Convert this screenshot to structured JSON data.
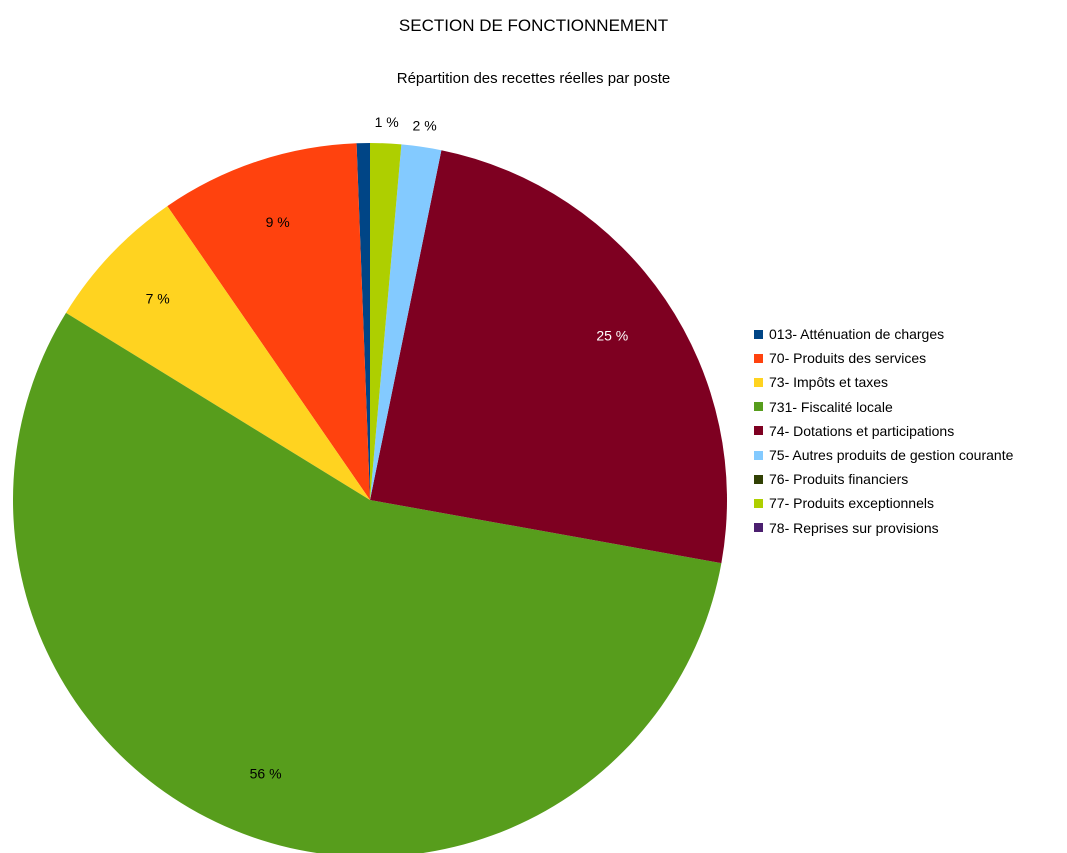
{
  "chart_data": {
    "type": "pie",
    "title": "SECTION DE FONCTIONNEMENT",
    "subtitle": "Répartition des recettes réelles par poste",
    "legend_position": "right",
    "slices": [
      {
        "name": "013- Atténuation de charges",
        "value": 0.6,
        "label": "",
        "color": "#004586"
      },
      {
        "name": "70- Produits des services",
        "value": 9.0,
        "label": "9 %",
        "color": "#ff420e"
      },
      {
        "name": "73- Impôts et taxes",
        "value": 6.6,
        "label": "7 %",
        "color": "#ffd320"
      },
      {
        "name": "731- Fiscalité locale",
        "value": 55.9,
        "label": "56 %",
        "color": "#579d1c"
      },
      {
        "name": "74- Dotations et participations",
        "value": 24.6,
        "label": "25 %",
        "color": "#7e0021"
      },
      {
        "name": "75- Autres produits de gestion courante",
        "value": 1.8,
        "label": "2 %",
        "color": "#83caff"
      },
      {
        "name": "76- Produits financiers",
        "value": 0,
        "label": "",
        "color": "#314004"
      },
      {
        "name": "77- Produits exceptionnels",
        "value": 1.4,
        "label": "1 %",
        "color": "#aecf00"
      },
      {
        "name": "78- Reprises sur provisions",
        "value": 0,
        "label": "",
        "color": "#4b1f6f"
      }
    ]
  }
}
